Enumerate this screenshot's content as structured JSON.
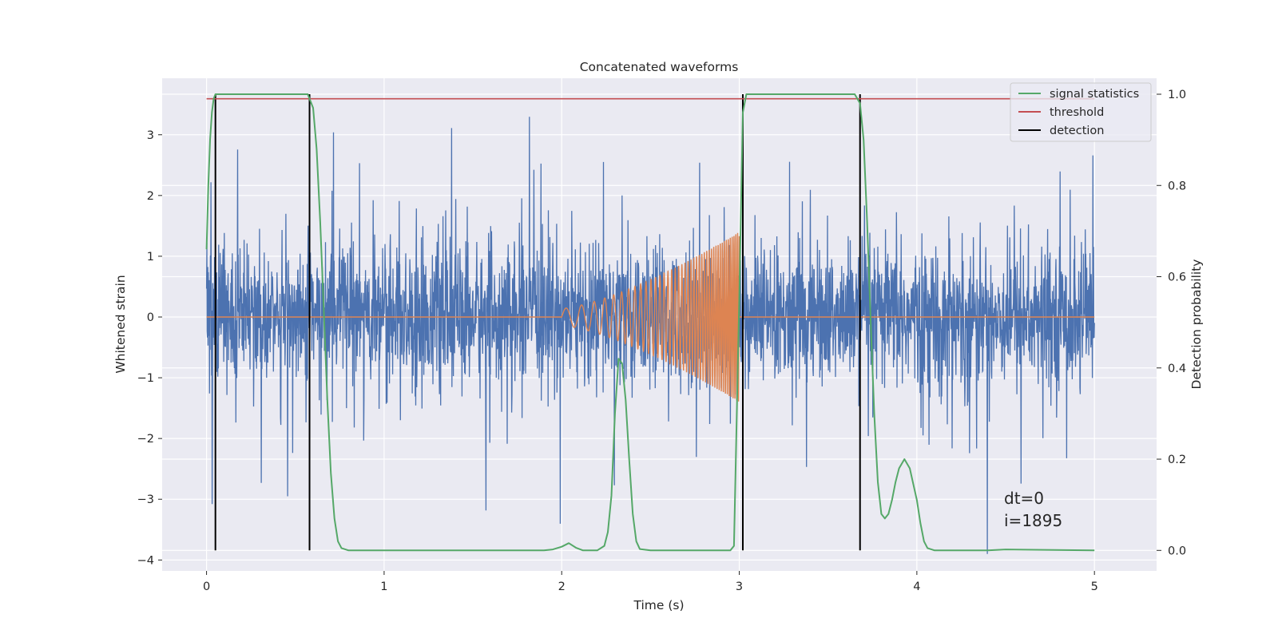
{
  "chart_data": {
    "type": "line",
    "title": "Concatenated waveforms",
    "xlabel": "Time (s)",
    "ylabel_left": "Whitened strain",
    "ylabel_right": "Detection probability",
    "xlim": [
      -0.25,
      5.35
    ],
    "ylim_left": [
      -4.18,
      3.93
    ],
    "ylim_right": [
      -0.045,
      1.035
    ],
    "xticks": [
      0,
      1,
      2,
      3,
      4,
      5
    ],
    "xtick_labels": [
      "0",
      "1",
      "2",
      "3",
      "4",
      "5"
    ],
    "yticks_left": [
      -4,
      -3,
      -2,
      -1,
      0,
      1,
      2,
      3
    ],
    "ytick_labels_left": [
      "−4",
      "−3",
      "−2",
      "−1",
      "0",
      "1",
      "2",
      "3"
    ],
    "yticks_right": [
      0.0,
      0.2,
      0.4,
      0.6,
      0.8,
      1.0
    ],
    "ytick_labels_right": [
      "0.0",
      "0.2",
      "0.4",
      "0.6",
      "0.8",
      "1.0"
    ],
    "grid": true,
    "legend_position": "top-right",
    "legend": [
      {
        "label": "signal statistics",
        "color": "#55a868"
      },
      {
        "label": "threshold",
        "color": "#c44e52"
      },
      {
        "label": "detection",
        "color": "#000000"
      }
    ],
    "noise": {
      "color": "#4c72b0",
      "x_range": [
        0,
        5
      ],
      "typical_range": [
        -1.0,
        1.0
      ],
      "max_peak": 3.6,
      "min_peak": -3.9
    },
    "injected_signal": {
      "color": "#dd8452",
      "x_start": 2.0,
      "x_end": 3.0,
      "max_amplitude": 1.4,
      "baseline": 0
    },
    "threshold": {
      "value": 0.99,
      "x_range": [
        0,
        5
      ]
    },
    "detections": [
      0.05,
      0.58,
      3.02,
      3.68
    ],
    "signal_statistics": {
      "x": [
        0,
        0.01,
        0.02,
        0.03,
        0.04,
        0.05,
        0.07,
        0.1,
        0.5,
        0.57,
        0.6,
        0.62,
        0.64,
        0.66,
        0.68,
        0.7,
        0.72,
        0.74,
        0.76,
        0.8,
        1.9,
        1.95,
        2.0,
        2.04,
        2.08,
        2.12,
        2.2,
        2.24,
        2.26,
        2.28,
        2.3,
        2.32,
        2.34,
        2.36,
        2.38,
        2.4,
        2.42,
        2.44,
        2.5,
        2.95,
        2.97,
        3.0,
        3.02,
        3.04,
        3.06,
        3.1,
        3.65,
        3.68,
        3.7,
        3.72,
        3.74,
        3.76,
        3.78,
        3.8,
        3.82,
        3.84,
        3.86,
        3.88,
        3.9,
        3.93,
        3.96,
        4.0,
        4.02,
        4.04,
        4.06,
        4.1,
        4.4,
        4.5,
        5.0
      ],
      "y": [
        0.66,
        0.8,
        0.9,
        0.96,
        0.99,
        1.0,
        1.0,
        1.0,
        1.0,
        1.0,
        0.97,
        0.88,
        0.72,
        0.53,
        0.33,
        0.17,
        0.07,
        0.02,
        0.005,
        0.0,
        0.0,
        0.002,
        0.008,
        0.016,
        0.006,
        0.0,
        0.0,
        0.01,
        0.04,
        0.12,
        0.3,
        0.42,
        0.41,
        0.33,
        0.2,
        0.08,
        0.02,
        0.003,
        0.0,
        0.0,
        0.01,
        0.55,
        0.96,
        1.0,
        1.0,
        1.0,
        1.0,
        0.98,
        0.9,
        0.72,
        0.5,
        0.3,
        0.15,
        0.08,
        0.07,
        0.08,
        0.11,
        0.15,
        0.18,
        0.2,
        0.18,
        0.11,
        0.06,
        0.02,
        0.005,
        0.0,
        0.0,
        0.002,
        0.0
      ]
    },
    "annotations": [
      "dt=0",
      "i=1895"
    ]
  }
}
